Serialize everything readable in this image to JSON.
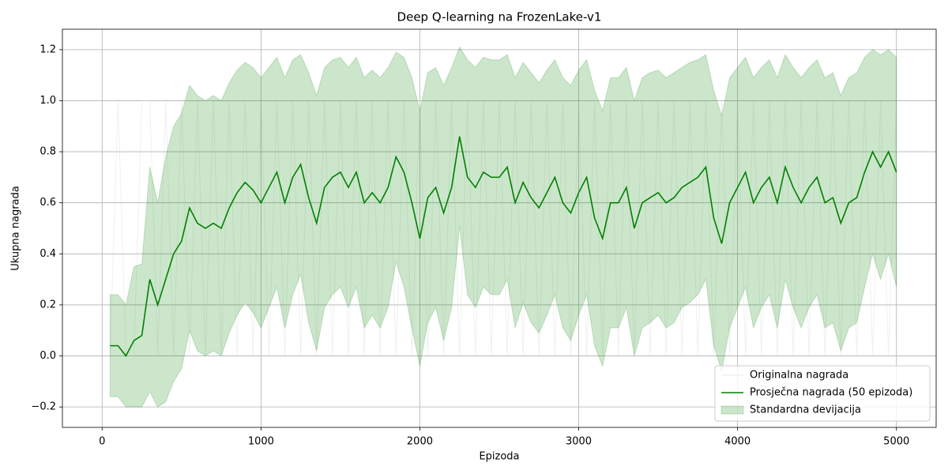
{
  "chart_data": {
    "type": "line",
    "title": "Deep Q-learning na FrozenLake-v1",
    "x_label": "Epizoda",
    "y_label": "Ukupna nagrada",
    "xlim": [
      -250,
      5250
    ],
    "xticks": [
      0,
      1000,
      2000,
      3000,
      4000,
      5000
    ],
    "ylim": [
      -0.28,
      1.28
    ],
    "yticks": [
      {
        "value": -0.2,
        "label": "−0.2"
      },
      {
        "value": 0,
        "label": "0.0"
      },
      0.2,
      0.4,
      0.6,
      0.8,
      {
        "value": 1,
        "label": "1.0"
      },
      1.2
    ],
    "grid": true,
    "legend": "lower right",
    "x": [
      50,
      100,
      150,
      200,
      250,
      300,
      350,
      400,
      450,
      500,
      550,
      600,
      650,
      700,
      750,
      800,
      850,
      900,
      950,
      1000,
      1050,
      1100,
      1150,
      1200,
      1250,
      1300,
      1350,
      1400,
      1450,
      1500,
      1550,
      1600,
      1650,
      1700,
      1750,
      1800,
      1850,
      1900,
      1950,
      2000,
      2050,
      2100,
      2150,
      2200,
      2250,
      2300,
      2350,
      2400,
      2450,
      2500,
      2550,
      2600,
      2650,
      2700,
      2750,
      2800,
      2850,
      2900,
      2950,
      3000,
      3050,
      3100,
      3150,
      3200,
      3250,
      3300,
      3350,
      3400,
      3450,
      3500,
      3550,
      3600,
      3650,
      3700,
      3750,
      3800,
      3850,
      3900,
      3950,
      4000,
      4050,
      4100,
      4150,
      4200,
      4250,
      4300,
      4350,
      4400,
      4450,
      4500,
      4550,
      4600,
      4650,
      4700,
      4750,
      4800,
      4850,
      4900,
      4950,
      5000
    ],
    "series": [
      {
        "name": "Originalna nagrada",
        "color": "#d3d3d3",
        "values": [
          0,
          1,
          0,
          0,
          1,
          1,
          0,
          1,
          0,
          1,
          0,
          1,
          0,
          1,
          0,
          1,
          0,
          1,
          0,
          1,
          0,
          1,
          0,
          1,
          0,
          1,
          0,
          1,
          0,
          1,
          0,
          1,
          0,
          1,
          0,
          1,
          0,
          1,
          0,
          1,
          0,
          1,
          0,
          1,
          0,
          1,
          0,
          1,
          0,
          1,
          0,
          1,
          0,
          1,
          0,
          1,
          0,
          1,
          0,
          1,
          0,
          1,
          0,
          1,
          0,
          1,
          0,
          1,
          0,
          1,
          0,
          1,
          0,
          1,
          0,
          1,
          0,
          1,
          0,
          1,
          0,
          1,
          0,
          1,
          0,
          1,
          0,
          1,
          0,
          1,
          0,
          1,
          0,
          1,
          0,
          1,
          0,
          1,
          0,
          1
        ]
      },
      {
        "name": "Prosječna nagrada (50 epizoda)",
        "color": "#008000",
        "values": [
          0.04,
          0.04,
          0,
          0.06,
          0.08,
          0.3,
          0.2,
          0.3,
          0.4,
          0.45,
          0.58,
          0.52,
          0.5,
          0.52,
          0.5,
          0.58,
          0.64,
          0.68,
          0.65,
          0.6,
          0.66,
          0.72,
          0.6,
          0.7,
          0.75,
          0.62,
          0.52,
          0.66,
          0.7,
          0.72,
          0.66,
          0.72,
          0.6,
          0.64,
          0.6,
          0.66,
          0.78,
          0.72,
          0.6,
          0.46,
          0.62,
          0.66,
          0.56,
          0.66,
          0.86,
          0.7,
          0.66,
          0.72,
          0.7,
          0.7,
          0.74,
          0.6,
          0.68,
          0.62,
          0.58,
          0.64,
          0.7,
          0.6,
          0.56,
          0.64,
          0.7,
          0.54,
          0.46,
          0.6,
          0.6,
          0.66,
          0.5,
          0.6,
          0.62,
          0.64,
          0.6,
          0.62,
          0.66,
          0.68,
          0.7,
          0.74,
          0.54,
          0.44,
          0.6,
          0.66,
          0.72,
          0.6,
          0.66,
          0.7,
          0.6,
          0.74,
          0.66,
          0.6,
          0.66,
          0.7,
          0.6,
          0.62,
          0.52,
          0.6,
          0.62,
          0.72,
          0.8,
          0.74,
          0.8,
          0.72
        ]
      },
      {
        "name": "Standardna devijacija",
        "color": "#008000",
        "low": [
          -0.16,
          -0.16,
          -0.2,
          -0.2,
          -0.2,
          -0.14,
          -0.2,
          -0.18,
          -0.1,
          -0.05,
          0.1,
          0.02,
          0,
          0.02,
          0,
          0.09,
          0.16,
          0.21,
          0.17,
          0.11,
          0.19,
          0.27,
          0.11,
          0.24,
          0.32,
          0.13,
          0.02,
          0.19,
          0.24,
          0.27,
          0.19,
          0.27,
          0.11,
          0.16,
          0.11,
          0.19,
          0.37,
          0.27,
          0.11,
          -0.04,
          0.13,
          0.19,
          0.06,
          0.19,
          0.51,
          0.24,
          0.19,
          0.27,
          0.24,
          0.24,
          0.3,
          0.11,
          0.21,
          0.13,
          0.09,
          0.16,
          0.24,
          0.11,
          0.06,
          0.16,
          0.24,
          0.04,
          -0.04,
          0.11,
          0.11,
          0.19,
          0,
          0.11,
          0.13,
          0.16,
          0.11,
          0.13,
          0.19,
          0.21,
          0.24,
          0.3,
          0.04,
          -0.06,
          0.11,
          0.19,
          0.27,
          0.11,
          0.19,
          0.24,
          0.11,
          0.3,
          0.19,
          0.11,
          0.19,
          0.24,
          0.11,
          0.13,
          0.02,
          0.11,
          0.13,
          0.27,
          0.4,
          0.3,
          0.4,
          0.27
        ],
        "high": [
          0.24,
          0.24,
          0.2,
          0.35,
          0.36,
          0.74,
          0.6,
          0.78,
          0.9,
          0.95,
          1.06,
          1.02,
          1,
          1.02,
          1,
          1.07,
          1.12,
          1.15,
          1.13,
          1.09,
          1.13,
          1.17,
          1.09,
          1.16,
          1.18,
          1.11,
          1.02,
          1.13,
          1.16,
          1.17,
          1.13,
          1.17,
          1.09,
          1.12,
          1.09,
          1.13,
          1.19,
          1.17,
          1.09,
          0.96,
          1.11,
          1.13,
          1.06,
          1.13,
          1.21,
          1.16,
          1.13,
          1.17,
          1.16,
          1.16,
          1.18,
          1.09,
          1.15,
          1.11,
          1.07,
          1.12,
          1.16,
          1.09,
          1.06,
          1.12,
          1.16,
          1.04,
          0.96,
          1.09,
          1.09,
          1.13,
          1,
          1.09,
          1.11,
          1.12,
          1.09,
          1.11,
          1.13,
          1.15,
          1.16,
          1.18,
          1.04,
          0.94,
          1.09,
          1.13,
          1.17,
          1.09,
          1.13,
          1.16,
          1.09,
          1.18,
          1.13,
          1.09,
          1.13,
          1.16,
          1.09,
          1.11,
          1.02,
          1.09,
          1.11,
          1.17,
          1.2,
          1.18,
          1.2,
          1.17
        ]
      }
    ]
  }
}
